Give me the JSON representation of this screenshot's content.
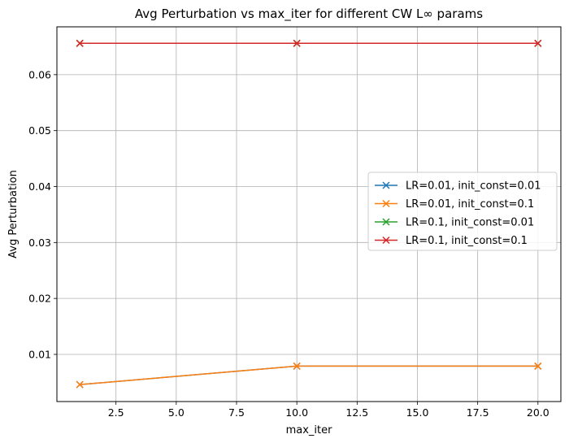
{
  "chart_data": {
    "type": "line",
    "title": "Avg Perturbation vs max_iter for different CW L∞ params",
    "xlabel": "max_iter",
    "ylabel": "Avg Perturbation",
    "x": [
      1,
      10,
      20
    ],
    "xlim": [
      0.05,
      20.95
    ],
    "ylim": [
      0.00157,
      0.06855
    ],
    "xticks": [
      2.5,
      5.0,
      7.5,
      10.0,
      12.5,
      15.0,
      17.5,
      20.0
    ],
    "xtick_labels": [
      "2.5",
      "5.0",
      "7.5",
      "10.0",
      "12.5",
      "15.0",
      "17.5",
      "20.0"
    ],
    "yticks": [
      0.01,
      0.02,
      0.03,
      0.04,
      0.05,
      0.06
    ],
    "ytick_labels": [
      "0.01",
      "0.02",
      "0.03",
      "0.04",
      "0.05",
      "0.06"
    ],
    "grid": true,
    "marker": "x",
    "legend_position": "center-right",
    "series": [
      {
        "name": "LR=0.01, init_const=0.01",
        "values": [
          0.0046,
          0.0079,
          0.0079
        ],
        "color": "#1f77b4"
      },
      {
        "name": "LR=0.01, init_const=0.1",
        "values": [
          0.0046,
          0.0079,
          0.0079
        ],
        "color": "#ff7f0e"
      },
      {
        "name": "LR=0.1, init_const=0.01",
        "values": [
          0.0656,
          0.0656,
          0.0656
        ],
        "color": "#2ca02c"
      },
      {
        "name": "LR=0.1, init_const=0.1",
        "values": [
          0.0656,
          0.0656,
          0.0656
        ],
        "color": "#d62728"
      }
    ]
  }
}
